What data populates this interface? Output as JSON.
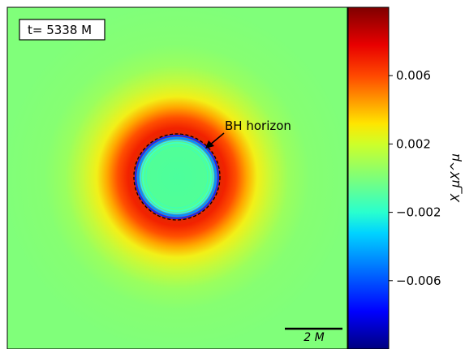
{
  "chart_data": {
    "type": "heatmap",
    "time_label": "t= 5338 M",
    "annotation": "BH horizon",
    "scale_bar_label": "2 M",
    "colorbar": {
      "label": "X_μX^μ",
      "vmin": -0.01,
      "vmax": 0.01,
      "ticks": [
        0.006,
        0.002,
        -0.002,
        -0.006
      ],
      "tick_labels": [
        "0.006",
        "0.002",
        "−0.002",
        "−0.006"
      ],
      "colormap": "jet"
    },
    "field": {
      "background_value": 0.0005,
      "ring_peak_value": 0.0085,
      "ring_peak_radius_M": 2.45,
      "interior_value": -0.0003,
      "horizon_rim_value": -0.006,
      "horizon_radius_M": 1.25,
      "scale_bar_length_M": 2
    },
    "colors": {
      "background": "#80FF7A",
      "ring_peak": "#E01400",
      "interior": "#4CFF9C",
      "rim": "#0A8CFF",
      "horizon_line": "#000000"
    }
  }
}
